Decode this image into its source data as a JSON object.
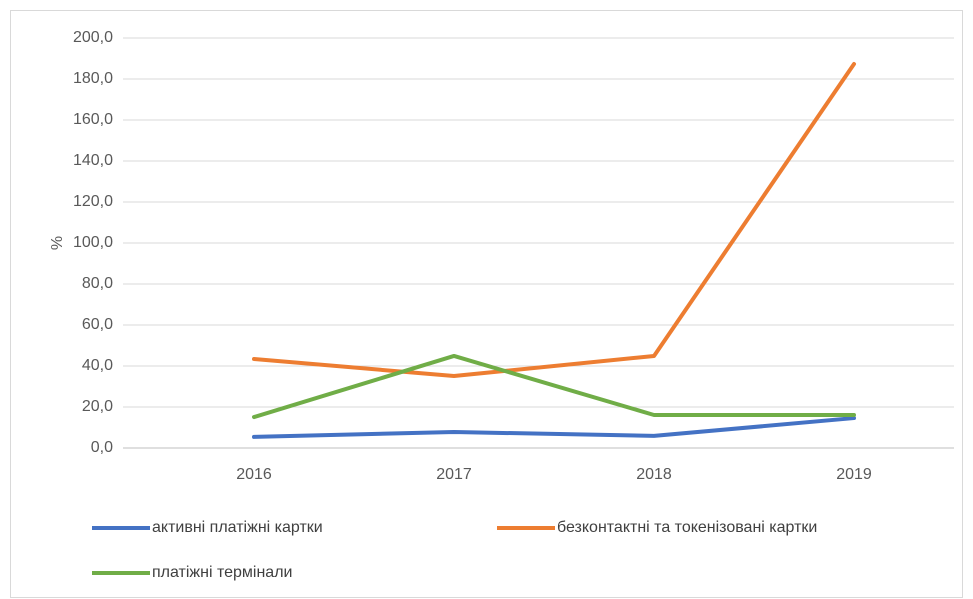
{
  "chart_data": {
    "type": "line",
    "y_label": "%",
    "categories": [
      "2016",
      "2017",
      "2018",
      "2019"
    ],
    "series": [
      {
        "name": "активні платіжні картки",
        "color": "#4472c4",
        "values": [
          5.4,
          7.8,
          5.9,
          14.6
        ]
      },
      {
        "name": "безконтактні та токенізовані картки",
        "color": "#ed7d31",
        "values": [
          43.4,
          35.1,
          44.9,
          187.3
        ]
      },
      {
        "name": "платіжні термінали",
        "color": "#70ad47",
        "values": [
          15.1,
          44.9,
          16.1,
          16.1
        ]
      }
    ],
    "ylim": [
      0,
      200
    ],
    "yticks": [
      {
        "value": 0,
        "label": "0,0"
      },
      {
        "value": 20,
        "label": "20,0"
      },
      {
        "value": 40,
        "label": "40,0"
      },
      {
        "value": 60,
        "label": "60,0"
      },
      {
        "value": 80,
        "label": "80,0"
      },
      {
        "value": 100,
        "label": "100,0"
      },
      {
        "value": 120,
        "label": "120,0"
      },
      {
        "value": 140,
        "label": "140,0"
      },
      {
        "value": 160,
        "label": "160,0"
      },
      {
        "value": 180,
        "label": "180,0"
      },
      {
        "value": 200,
        "label": "200,0"
      }
    ],
    "grid": true
  }
}
